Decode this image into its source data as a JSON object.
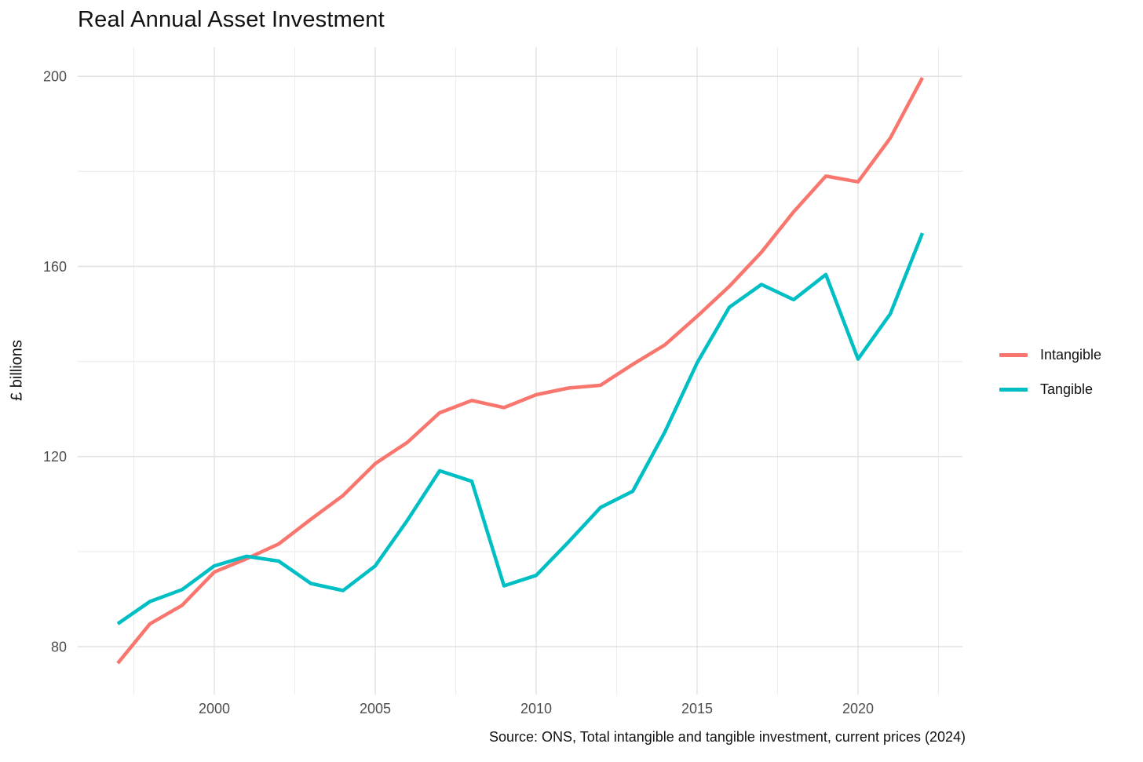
{
  "title": "Real Annual Asset Investment",
  "y_axis_title": "£ billions",
  "caption": "Source: ONS, Total intangible and tangible investment, current prices (2024)",
  "legend": {
    "position": "right",
    "items": [
      {
        "label": "Intangible",
        "color": "#F8766D"
      },
      {
        "label": "Tangible",
        "color": "#00BFC4"
      }
    ]
  },
  "colors": {
    "intangible": "#F8766D",
    "tangible": "#00BFC4",
    "grid_major": "#e2e2e2",
    "grid_minor": "#ededed",
    "axis_text": "#4d4d4d",
    "background": "#ffffff"
  },
  "chart_data": {
    "type": "line",
    "title": "Real Annual Asset Investment",
    "xlabel": "",
    "ylabel": "£ billions",
    "grid": true,
    "legend_position": "right",
    "x": [
      1997,
      1998,
      1999,
      2000,
      2001,
      2002,
      2003,
      2004,
      2005,
      2006,
      2007,
      2008,
      2009,
      2010,
      2011,
      2012,
      2013,
      2014,
      2015,
      2016,
      2017,
      2018,
      2019,
      2020,
      2021,
      2022
    ],
    "series": [
      {
        "name": "Intangible",
        "color": "#F8766D",
        "values": [
          76.5,
          84.8,
          88.7,
          95.7,
          98.5,
          101.6,
          106.8,
          111.8,
          118.5,
          123,
          129.2,
          131.8,
          130.3,
          133,
          134.4,
          135,
          139.4,
          143.5,
          149.5,
          155.8,
          163,
          171.5,
          179,
          177.8,
          187,
          199.7
        ]
      },
      {
        "name": "Tangible",
        "color": "#00BFC4",
        "values": [
          84.8,
          89.5,
          92,
          97,
          99,
          98,
          93.3,
          91.8,
          97,
          106.6,
          117,
          114.8,
          92.8,
          95,
          102,
          109.3,
          112.7,
          125.2,
          139.7,
          151.4,
          156.2,
          153,
          158.3,
          140.5,
          150,
          167
        ]
      }
    ],
    "x_ticks": [
      2000,
      2005,
      2010,
      2015,
      2020
    ],
    "x_minor_ticks": [
      1997.5,
      2002.5,
      2007.5,
      2012.5,
      2017.5,
      2022.5
    ],
    "y_ticks": [
      80,
      120,
      160,
      200
    ],
    "y_minor_ticks": [
      100,
      140,
      180
    ],
    "xlim": [
      1995.756,
      2023.244
    ],
    "ylim": [
      69.93,
      206.15
    ]
  }
}
